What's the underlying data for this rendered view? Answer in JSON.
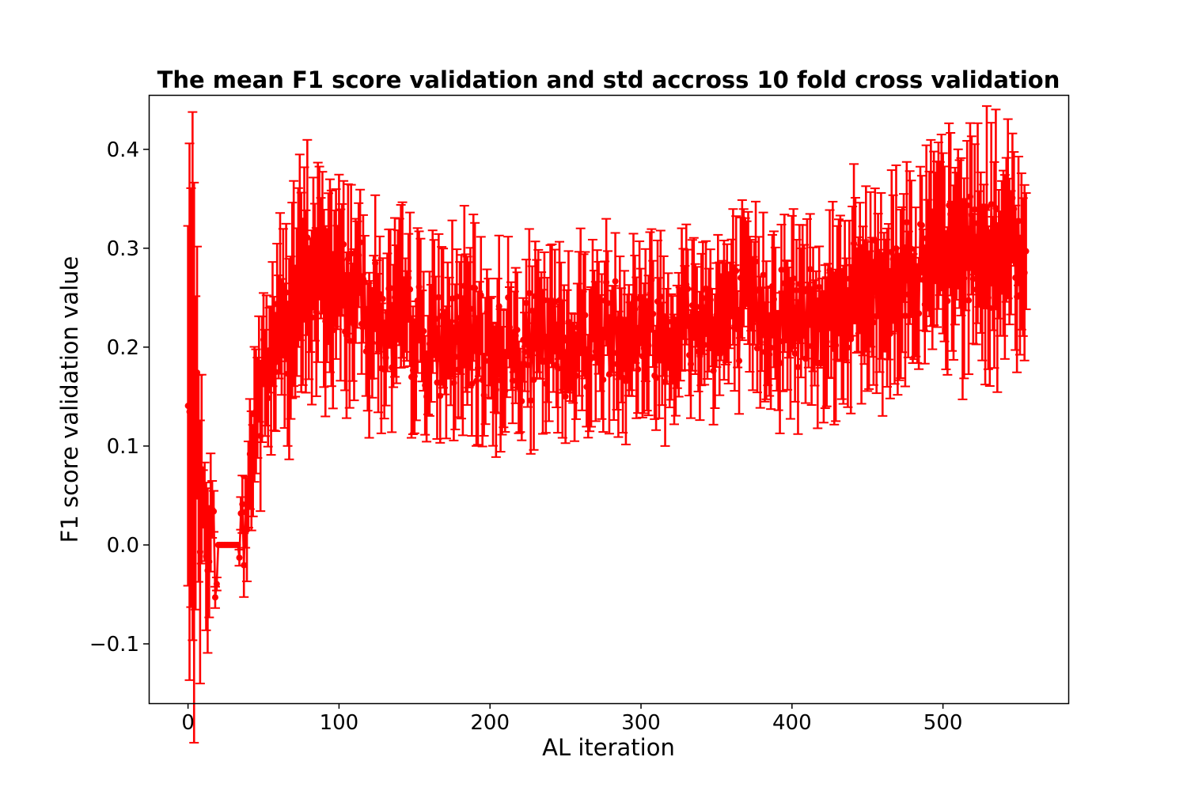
{
  "chart_data": {
    "type": "errorbar-line",
    "title": "The mean F1 score validation and std accross 10 fold cross validation",
    "xlabel": "AL iteration",
    "ylabel": "F1 score validation value",
    "xlim": [
      -26,
      583
    ],
    "ylim": [
      -0.16,
      0.455
    ],
    "xticks": [
      0,
      100,
      200,
      300,
      400,
      500
    ],
    "xtick_labels": [
      "0",
      "100",
      "200",
      "300",
      "400",
      "500"
    ],
    "yticks": [
      -0.1,
      0.0,
      0.1,
      0.2,
      0.3,
      0.4
    ],
    "ytick_labels": [
      "−0.1",
      "0.0",
      "0.1",
      "0.2",
      "0.3",
      "0.4"
    ],
    "grid": false,
    "legend": "none",
    "series_color": "#ff0000",
    "n_points": 556,
    "x_range": [
      0,
      555
    ],
    "mean_profile": [
      {
        "x": 0,
        "mean": 0.13,
        "std": 0.26
      },
      {
        "x": 2,
        "mean": 0.13,
        "std": 0.26
      },
      {
        "x": 4,
        "mean": 0.13,
        "std": 0.27
      },
      {
        "x": 6,
        "mean": 0.12,
        "std": 0.22
      },
      {
        "x": 8,
        "mean": 0.04,
        "std": 0.15
      },
      {
        "x": 10,
        "mean": 0.02,
        "std": 0.05
      },
      {
        "x": 14,
        "mean": 0.022,
        "std": 0.1
      },
      {
        "x": 16,
        "mean": -0.004,
        "std": 0.03
      },
      {
        "x": 20,
        "mean": 0.0,
        "std": 0.0
      },
      {
        "x": 33,
        "mean": 0.0,
        "std": 0.0
      },
      {
        "x": 36,
        "mean": 0.0,
        "std": 0.035
      },
      {
        "x": 40,
        "mean": 0.05,
        "std": 0.06
      },
      {
        "x": 45,
        "mean": 0.14,
        "std": 0.09
      },
      {
        "x": 50,
        "mean": 0.16,
        "std": 0.07
      },
      {
        "x": 55,
        "mean": 0.19,
        "std": 0.08
      },
      {
        "x": 60,
        "mean": 0.21,
        "std": 0.09
      },
      {
        "x": 70,
        "mean": 0.24,
        "std": 0.1
      },
      {
        "x": 80,
        "mean": 0.27,
        "std": 0.1
      },
      {
        "x": 90,
        "mean": 0.27,
        "std": 0.1
      },
      {
        "x": 100,
        "mean": 0.26,
        "std": 0.09
      },
      {
        "x": 110,
        "mean": 0.26,
        "std": 0.09
      },
      {
        "x": 120,
        "mean": 0.24,
        "std": 0.08
      },
      {
        "x": 130,
        "mean": 0.22,
        "std": 0.07
      },
      {
        "x": 140,
        "mean": 0.22,
        "std": 0.08
      },
      {
        "x": 150,
        "mean": 0.22,
        "std": 0.08
      },
      {
        "x": 160,
        "mean": 0.2,
        "std": 0.07
      },
      {
        "x": 180,
        "mean": 0.21,
        "std": 0.08
      },
      {
        "x": 200,
        "mean": 0.2,
        "std": 0.07
      },
      {
        "x": 220,
        "mean": 0.2,
        "std": 0.07
      },
      {
        "x": 240,
        "mean": 0.2,
        "std": 0.07
      },
      {
        "x": 260,
        "mean": 0.21,
        "std": 0.07
      },
      {
        "x": 280,
        "mean": 0.22,
        "std": 0.07
      },
      {
        "x": 300,
        "mean": 0.22,
        "std": 0.07
      },
      {
        "x": 320,
        "mean": 0.22,
        "std": 0.07
      },
      {
        "x": 340,
        "mean": 0.23,
        "std": 0.07
      },
      {
        "x": 360,
        "mean": 0.23,
        "std": 0.07
      },
      {
        "x": 380,
        "mean": 0.24,
        "std": 0.07
      },
      {
        "x": 400,
        "mean": 0.23,
        "std": 0.07
      },
      {
        "x": 420,
        "mean": 0.24,
        "std": 0.07
      },
      {
        "x": 440,
        "mean": 0.25,
        "std": 0.08
      },
      {
        "x": 460,
        "mean": 0.26,
        "std": 0.08
      },
      {
        "x": 480,
        "mean": 0.28,
        "std": 0.09
      },
      {
        "x": 500,
        "mean": 0.29,
        "std": 0.09
      },
      {
        "x": 520,
        "mean": 0.3,
        "std": 0.1
      },
      {
        "x": 540,
        "mean": 0.29,
        "std": 0.1
      },
      {
        "x": 555,
        "mean": 0.305,
        "std": 0.09
      }
    ]
  }
}
